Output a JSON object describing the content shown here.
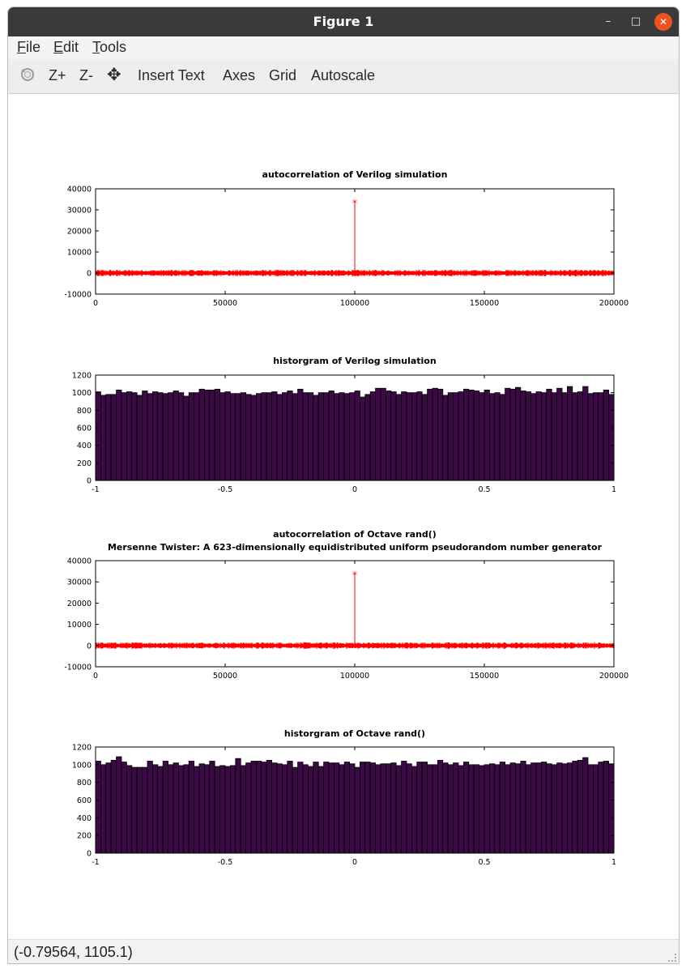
{
  "window": {
    "title": "Figure 1",
    "minimize_glyph": "–",
    "maximize_glyph": "□",
    "close_glyph": "✕"
  },
  "menubar": {
    "items": [
      {
        "label": "File",
        "underline": "F",
        "rest": "ile"
      },
      {
        "label": "Edit",
        "underline": "E",
        "rest": "dit"
      },
      {
        "label": "Tools",
        "underline": "T",
        "rest": "ools"
      }
    ]
  },
  "toolbar": {
    "rotate_icon": "rotate-icon",
    "zoom_in_label": "Z+",
    "zoom_out_label": "Z-",
    "pan_icon": "pan-icon",
    "pan_glyph": "✥",
    "insert_text_label": "Insert Text",
    "axes_label": "Axes",
    "grid_label": "Grid",
    "autoscale_label": "Autoscale"
  },
  "status": {
    "coordinates": "(-0.79564, 1105.1)"
  },
  "colors": {
    "stem": "#ff0000",
    "bar_fill": "#3b0a45",
    "bar_edge": "#000000"
  },
  "chart_data": [
    {
      "type": "line",
      "title": "autocorrelation of Verilog simulation",
      "subtitle": "",
      "xlim": [
        0,
        200000
      ],
      "ylim": [
        -10000,
        40000
      ],
      "xticks": [
        0,
        50000,
        100000,
        150000,
        200000
      ],
      "yticks": [
        -10000,
        0,
        10000,
        20000,
        30000,
        40000
      ],
      "peak": {
        "x": 100000,
        "y": 33500
      },
      "noise_band": [
        -1000,
        1000
      ],
      "marker": "*"
    },
    {
      "type": "bar",
      "title": "historgram of Verilog simulation",
      "subtitle": "",
      "xlim": [
        -1,
        1
      ],
      "ylim": [
        0,
        1200
      ],
      "xticks": [
        -1,
        -0.5,
        0,
        0.5,
        1
      ],
      "yticks": [
        0,
        200,
        400,
        600,
        800,
        1000,
        1200
      ],
      "values": [
        1010,
        970,
        980,
        980,
        1030,
        1000,
        1010,
        1000,
        970,
        1020,
        990,
        1010,
        1000,
        990,
        1000,
        1020,
        1000,
        960,
        1000,
        1000,
        1040,
        1030,
        1030,
        1040,
        1000,
        1010,
        990,
        990,
        1000,
        980,
        970,
        990,
        1000,
        1000,
        1010,
        980,
        1000,
        1020,
        990,
        1040,
        1000,
        1000,
        970,
        1000,
        1000,
        1020,
        990,
        1000,
        990,
        1000,
        1020,
        950,
        980,
        1010,
        1050,
        1050,
        1020,
        1010,
        980,
        1010,
        1000,
        1000,
        1010,
        980,
        1040,
        1050,
        1040,
        970,
        1000,
        1000,
        1010,
        1040,
        1030,
        1020,
        1000,
        1030,
        990,
        1000,
        980,
        1050,
        1040,
        1060,
        1020,
        1010,
        990,
        1010,
        1000,
        1040,
        1000,
        1050,
        1000,
        1070,
        1000,
        1010,
        1070,
        990,
        1000,
        1000,
        1030,
        980
      ]
    },
    {
      "type": "line",
      "title": "autocorrelation of Octave rand()",
      "subtitle": "Mersenne Twister: A 623-dimensionally equidistributed uniform pseudorandom number generator",
      "xlim": [
        0,
        200000
      ],
      "ylim": [
        -10000,
        40000
      ],
      "xticks": [
        0,
        50000,
        100000,
        150000,
        200000
      ],
      "yticks": [
        -10000,
        0,
        10000,
        20000,
        30000,
        40000
      ],
      "peak": {
        "x": 100000,
        "y": 33500
      },
      "noise_band": [
        -1000,
        1000
      ],
      "marker": "*"
    },
    {
      "type": "bar",
      "title": "historgram of Octave rand()",
      "subtitle": "",
      "xlim": [
        -1,
        1
      ],
      "ylim": [
        0,
        1200
      ],
      "xticks": [
        -1,
        -0.5,
        0,
        0.5,
        1
      ],
      "yticks": [
        0,
        200,
        400,
        600,
        800,
        1000,
        1200
      ],
      "values": [
        1040,
        1000,
        1020,
        1050,
        1090,
        1030,
        990,
        970,
        970,
        970,
        1040,
        1000,
        980,
        1040,
        1000,
        1020,
        990,
        1000,
        1040,
        980,
        1010,
        1000,
        1040,
        980,
        990,
        980,
        990,
        1070,
        990,
        1020,
        1040,
        1040,
        1030,
        1050,
        1020,
        1010,
        1000,
        1040,
        970,
        1030,
        1000,
        980,
        1030,
        980,
        1030,
        1020,
        1020,
        1000,
        1030,
        1010,
        970,
        1030,
        1030,
        1020,
        1000,
        1010,
        1010,
        1020,
        990,
        1040,
        1010,
        980,
        1030,
        1030,
        1000,
        1000,
        1050,
        1020,
        1000,
        1020,
        990,
        1030,
        1000,
        1000,
        990,
        1000,
        1010,
        1000,
        1030,
        1000,
        1020,
        1010,
        1040,
        1000,
        1020,
        1020,
        1030,
        1010,
        1000,
        1020,
        1010,
        1020,
        1040,
        1050,
        1080,
        1000,
        1000,
        1030,
        1040,
        1010
      ]
    }
  ]
}
